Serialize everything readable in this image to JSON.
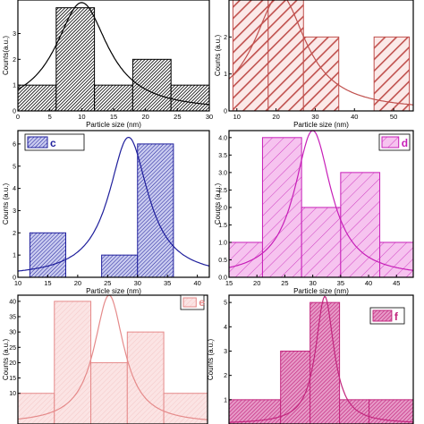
{
  "chart_data": [
    {
      "type": "bar",
      "label": "",
      "xlabel": "Particle size (nm)",
      "ylabel": "Counts(a.u.)",
      "xlim": [
        0,
        30
      ],
      "ylim": [
        0,
        4.3
      ],
      "xticks": [
        0,
        5,
        10,
        15,
        20,
        25,
        30
      ],
      "yticks": [
        0,
        1,
        2,
        3
      ],
      "color": "#000000",
      "bins": [
        [
          0,
          6,
          1
        ],
        [
          6,
          12,
          4
        ],
        [
          12,
          18,
          1
        ],
        [
          18,
          24,
          2
        ],
        [
          24,
          30,
          1
        ]
      ],
      "fit": {
        "center": 10,
        "gamma": 5
      }
    },
    {
      "type": "bar",
      "label": "",
      "xlabel": "Particle size (nm)",
      "ylabel": "Counts (a.u.)",
      "xlim": [
        8,
        55
      ],
      "ylim": [
        0,
        3.0
      ],
      "xticks": [
        10,
        20,
        30,
        40,
        50
      ],
      "yticks": [
        0,
        1,
        2
      ],
      "color": "#c0504d",
      "bins": [
        [
          9,
          18,
          3
        ],
        [
          18,
          27,
          3
        ],
        [
          27,
          36,
          2
        ],
        [
          45,
          54,
          2
        ]
      ],
      "fit": {
        "center": 21,
        "gamma": 8
      }
    },
    {
      "type": "bar",
      "label": "c",
      "xlabel": "Particle size (nm)",
      "ylabel": "Counts (a.u.)",
      "xlim": [
        10,
        42
      ],
      "ylim": [
        0,
        6.6
      ],
      "xticks": [
        10,
        15,
        20,
        25,
        30,
        35,
        40
      ],
      "yticks": [
        0,
        1,
        2,
        3,
        4,
        5,
        6
      ],
      "color": "#1f1f9c",
      "bins": [
        [
          12,
          18,
          2
        ],
        [
          24,
          30,
          1
        ],
        [
          30,
          36,
          6
        ]
      ],
      "fit": {
        "center": 28.5,
        "gamma": 4
      }
    },
    {
      "type": "bar",
      "label": "d",
      "xlabel": "Particle size (nm)",
      "ylabel": "Counts (a.u.)",
      "xlim": [
        15,
        48
      ],
      "ylim": [
        0,
        4.2
      ],
      "xticks": [
        15,
        20,
        25,
        30,
        35,
        40,
        45
      ],
      "yticks": [
        0,
        0.5,
        1.0,
        1.5,
        2.0,
        2.5,
        3.0,
        3.5,
        4.0
      ],
      "color": "#c71fb8",
      "bins": [
        [
          15,
          21,
          1
        ],
        [
          21,
          28,
          4
        ],
        [
          28,
          35,
          2
        ],
        [
          35,
          42,
          3
        ],
        [
          42,
          48,
          1
        ]
      ],
      "fit": {
        "center": 30,
        "gamma": 4
      }
    },
    {
      "type": "bar",
      "label": "e",
      "xlabel": "",
      "ylabel": "Counts (a.u.)",
      "xlim": [
        0,
        52
      ],
      "ylim": [
        0,
        42
      ],
      "xticks": [],
      "yticks": [
        10,
        15,
        20,
        25,
        30,
        35,
        40
      ],
      "color": "#e58a8a",
      "bins": [
        [
          0,
          10,
          10
        ],
        [
          10,
          20,
          40
        ],
        [
          20,
          30,
          20
        ],
        [
          30,
          40,
          30
        ],
        [
          40,
          52,
          10
        ]
      ],
      "fit": {
        "center": 25,
        "gamma": 5
      }
    },
    {
      "type": "bar",
      "label": "f",
      "xlabel": "",
      "ylabel": "Counts (a.u.)",
      "xlim": [
        0,
        50
      ],
      "ylim": [
        0,
        5.3
      ],
      "xticks": [],
      "yticks": [
        1,
        2,
        3,
        4,
        5
      ],
      "color": "#c2267e",
      "bins": [
        [
          0,
          14,
          1
        ],
        [
          14,
          22,
          3
        ],
        [
          22,
          30,
          5
        ],
        [
          30,
          38,
          1
        ],
        [
          38,
          50,
          1
        ]
      ],
      "fit": {
        "center": 26,
        "gamma": 3
      }
    }
  ]
}
